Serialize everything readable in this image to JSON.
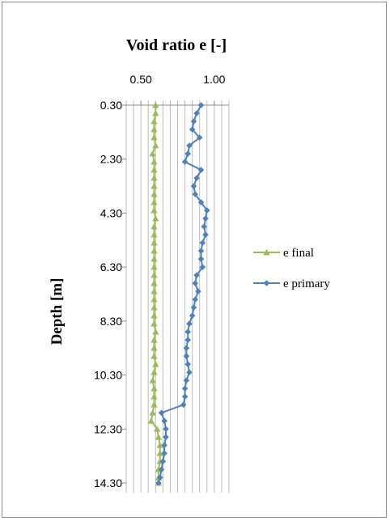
{
  "chart_data": {
    "type": "line",
    "title": "Void ratio e [-]",
    "xlabel": "",
    "ylabel": "Depth  [m]",
    "x_axis_position": "top",
    "xlim": [
      0.4,
      1.1
    ],
    "ylim": [
      0.3,
      14.3
    ],
    "y_inverted": true,
    "grid": true,
    "x_ticks": [
      {
        "value": 0.5,
        "label": "0.50"
      },
      {
        "value": 1.0,
        "label": "1.00"
      }
    ],
    "y_ticks": [
      {
        "value": 0.3,
        "label": "0.30"
      },
      {
        "value": 2.3,
        "label": "2.30"
      },
      {
        "value": 4.3,
        "label": "4.30"
      },
      {
        "value": 6.3,
        "label": "6.30"
      },
      {
        "value": 8.3,
        "label": "8.30"
      },
      {
        "value": 10.3,
        "label": "10.30"
      },
      {
        "value": 12.3,
        "label": "12.30"
      },
      {
        "value": 14.3,
        "label": "14.30"
      }
    ],
    "legend_position": "right",
    "series": [
      {
        "name": "e final",
        "color": "#9bbb59",
        "marker": "triangle",
        "depth": [
          0.3,
          0.6,
          0.9,
          1.2,
          1.5,
          1.8,
          2.1,
          2.4,
          2.7,
          3.0,
          3.3,
          3.6,
          3.9,
          4.2,
          4.5,
          4.8,
          5.1,
          5.4,
          5.7,
          6.0,
          6.3,
          6.6,
          6.9,
          7.2,
          7.5,
          7.8,
          8.1,
          8.4,
          8.7,
          9.0,
          9.3,
          9.6,
          9.9,
          10.2,
          10.5,
          10.8,
          11.1,
          11.4,
          11.7,
          12.0,
          12.3,
          12.6,
          12.9,
          13.2,
          13.5,
          13.8,
          14.1,
          14.3
        ],
        "values": [
          0.6,
          0.6,
          0.59,
          0.59,
          0.59,
          0.6,
          0.58,
          0.59,
          0.59,
          0.59,
          0.59,
          0.59,
          0.59,
          0.59,
          0.6,
          0.59,
          0.59,
          0.59,
          0.59,
          0.59,
          0.59,
          0.59,
          0.59,
          0.59,
          0.59,
          0.59,
          0.59,
          0.59,
          0.6,
          0.59,
          0.59,
          0.59,
          0.6,
          0.59,
          0.58,
          0.59,
          0.59,
          0.59,
          0.58,
          0.57,
          0.61,
          0.62,
          0.63,
          0.63,
          0.63,
          0.62,
          0.62,
          0.62
        ]
      },
      {
        "name": "e primary",
        "color": "#4f81bd",
        "marker": "diamond",
        "depth": [
          0.3,
          0.6,
          0.9,
          1.2,
          1.5,
          1.8,
          2.1,
          2.4,
          2.7,
          3.0,
          3.3,
          3.6,
          3.9,
          4.2,
          4.5,
          4.8,
          5.1,
          5.4,
          5.7,
          6.0,
          6.3,
          6.6,
          6.9,
          7.2,
          7.5,
          7.8,
          8.1,
          8.4,
          8.7,
          9.0,
          9.3,
          9.6,
          9.9,
          10.2,
          10.5,
          10.8,
          11.1,
          11.4,
          11.7,
          12.0,
          12.3,
          12.6,
          12.9,
          13.2,
          13.5,
          13.8,
          14.1,
          14.3
        ],
        "values": [
          0.91,
          0.88,
          0.86,
          0.85,
          0.9,
          0.83,
          0.82,
          0.8,
          0.91,
          0.88,
          0.86,
          0.87,
          0.91,
          0.95,
          0.94,
          0.93,
          0.94,
          0.92,
          0.91,
          0.91,
          0.92,
          0.88,
          0.87,
          0.89,
          0.87,
          0.86,
          0.85,
          0.83,
          0.82,
          0.82,
          0.81,
          0.81,
          0.82,
          0.83,
          0.81,
          0.8,
          0.8,
          0.79,
          0.64,
          0.66,
          0.67,
          0.67,
          0.66,
          0.66,
          0.65,
          0.64,
          0.63,
          0.62
        ]
      }
    ]
  }
}
